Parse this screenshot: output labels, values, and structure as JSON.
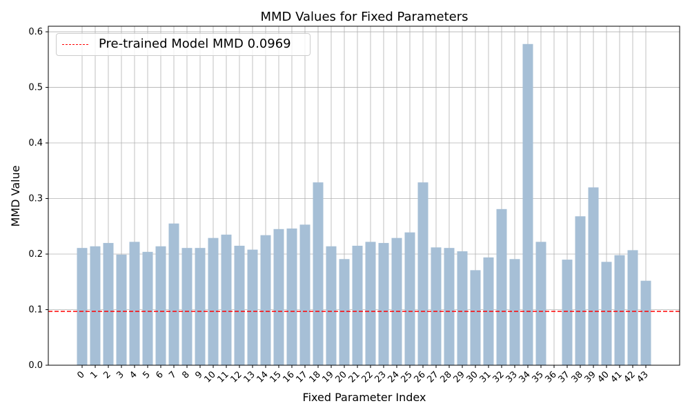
{
  "chart_data": {
    "type": "bar",
    "title": "MMD Values for Fixed Parameters",
    "xlabel": "Fixed Parameter Index",
    "ylabel": "MMD Value",
    "categories": [
      "0",
      "1",
      "2",
      "3",
      "4",
      "5",
      "6",
      "7",
      "8",
      "9",
      "10",
      "11",
      "12",
      "13",
      "14",
      "15",
      "16",
      "17",
      "18",
      "19",
      "20",
      "21",
      "22",
      "23",
      "24",
      "25",
      "26",
      "27",
      "28",
      "29",
      "30",
      "31",
      "32",
      "33",
      "34",
      "35",
      "36",
      "37",
      "38",
      "39",
      "40",
      "41",
      "42",
      "43"
    ],
    "values": [
      0.211,
      0.214,
      0.22,
      0.199,
      0.222,
      0.204,
      0.214,
      0.255,
      0.211,
      0.211,
      0.229,
      0.235,
      0.215,
      0.208,
      0.234,
      0.245,
      0.246,
      0.253,
      0.329,
      0.214,
      0.191,
      0.215,
      0.222,
      0.22,
      0.229,
      0.239,
      0.329,
      0.212,
      0.211,
      0.205,
      0.171,
      0.194,
      0.281,
      0.191,
      0.578,
      0.222,
      0.0,
      0.19,
      0.268,
      0.32,
      0.186,
      0.198,
      0.207,
      0.152
    ],
    "ylim": [
      0,
      0.61
    ],
    "yticks": [
      "0.0",
      "0.1",
      "0.2",
      "0.3",
      "0.4",
      "0.5",
      "0.6"
    ],
    "reference_line": {
      "value": 0.0969,
      "label": "Pre-trained Model MMD 0.0969",
      "color": "#ff0000",
      "style": "dashed"
    },
    "bar_color": "#a6bfd6",
    "grid": true,
    "legend_position": "top-left"
  }
}
